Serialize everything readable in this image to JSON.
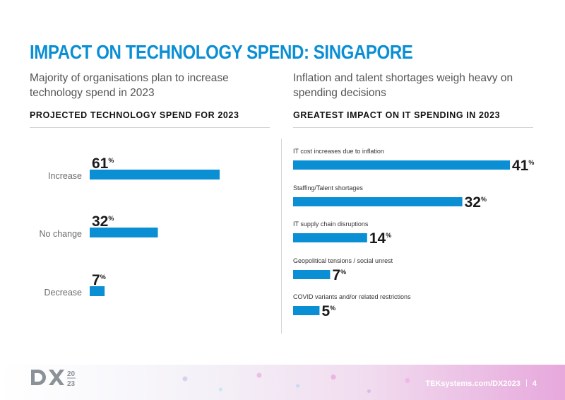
{
  "page": {
    "title": "IMPACT ON TECHNOLOGY SPEND: SINGAPORE",
    "left_subtitle": "Majority of organisations plan to increase technology spend in 2023",
    "right_subtitle": "Inflation and talent shortages weigh heavy on spending decisions",
    "left_heading": "PROJECTED TECHNOLOGY SPEND FOR 2023",
    "right_heading": "GREATEST IMPACT ON IT SPENDING IN 2023"
  },
  "chart_data": [
    {
      "type": "bar",
      "orientation": "horizontal",
      "title": "PROJECTED TECHNOLOGY SPEND FOR 2023",
      "categories": [
        "Increase",
        "No change",
        "Decrease"
      ],
      "values": [
        61,
        32,
        7
      ],
      "unit": "%",
      "color": "#0b8fd4"
    },
    {
      "type": "bar",
      "orientation": "horizontal",
      "title": "GREATEST IMPACT ON IT SPENDING IN 2023",
      "categories": [
        "IT cost increases due to inflation",
        "Staffing/Talent shortages",
        "IT supply chain disruptions",
        "Geopolitical tensions / social unrest",
        "COVID variants and/or related restrictions"
      ],
      "values": [
        41,
        32,
        14,
        7,
        5
      ],
      "unit": "%",
      "color": "#0b8fd4"
    }
  ],
  "footer": {
    "logo_text": "20\n23",
    "url": "TEKsystems.com/DX2023",
    "page_number": "4"
  },
  "colors": {
    "accent": "#0b8fd4",
    "footer_gradient_end": "#e7a8dc"
  }
}
